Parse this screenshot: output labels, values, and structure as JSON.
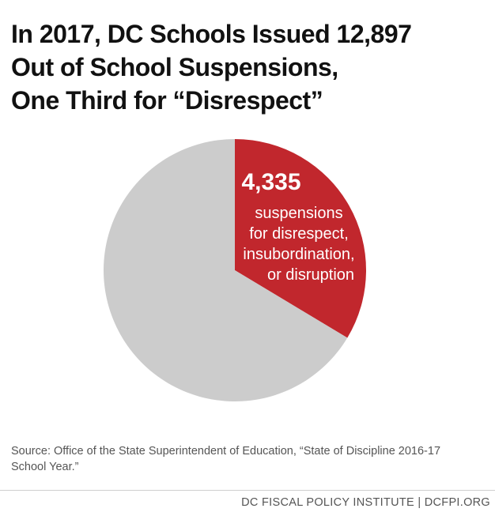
{
  "title": "In 2017, DC Schools Issued 12,897\nOut of School Suspensions,\nOne Third for “Disrespect”",
  "colors": {
    "highlight": "#c1272d",
    "remainder": "#cccccc",
    "label_text": "#ffffff"
  },
  "chart_data": {
    "type": "pie",
    "title": "In 2017, DC Schools Issued 12,897 Out of School Suspensions, One Third for “Disrespect”",
    "total": 12897,
    "slices": [
      {
        "value": 4335,
        "color": "#c1272d",
        "label_value": "4,335",
        "label_lines": [
          "suspensions",
          "for disrespect,",
          "insubordination,",
          "or disruption"
        ]
      },
      {
        "value": 8562,
        "color": "#cccccc"
      }
    ],
    "start_angle": "12 o'clock",
    "direction": "clockwise",
    "legend": "none"
  },
  "source": "Source: Office of the State Superintendent of Education, “State of Discipline 2016-17 School Year.”",
  "footer": "DC FISCAL POLICY INSTITUTE | DCFPI.ORG"
}
